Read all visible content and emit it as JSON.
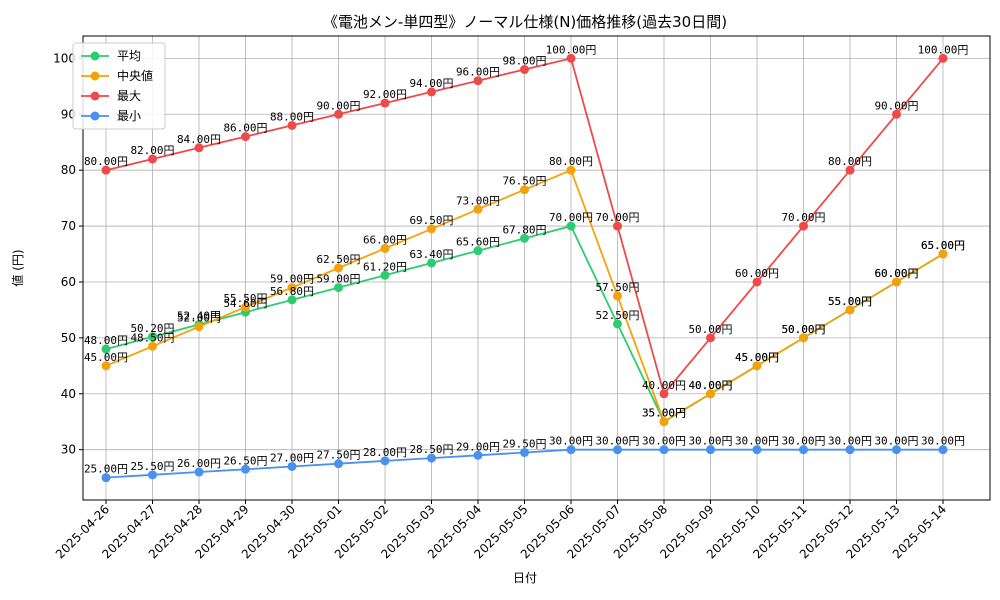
{
  "chart_data": {
    "type": "line",
    "title": "《電池メン-単四型》ノーマル仕様(N)価格推移(過去30日間)",
    "xlabel": "日付",
    "ylabel": "値 (円)",
    "ylim": [
      21,
      104
    ],
    "yticks": [
      30,
      40,
      50,
      60,
      70,
      80,
      90,
      100
    ],
    "grid": true,
    "legend_position": "top-left",
    "value_suffix": "円",
    "categories": [
      "2025-04-26",
      "2025-04-27",
      "2025-04-28",
      "2025-04-29",
      "2025-04-30",
      "2025-05-01",
      "2025-05-02",
      "2025-05-03",
      "2025-05-04",
      "2025-05-05",
      "2025-05-06",
      "2025-05-07",
      "2025-05-08",
      "2025-05-09",
      "2025-05-10",
      "2025-05-11",
      "2025-05-12",
      "2025-05-13",
      "2025-05-14"
    ],
    "series": [
      {
        "name": "平均",
        "color": "#2ecc71",
        "values": [
          48.0,
          50.2,
          52.4,
          54.6,
          56.8,
          59.0,
          61.2,
          63.4,
          65.6,
          67.8,
          70.0,
          52.5,
          35.0,
          40.0,
          45.0,
          50.0,
          55.0,
          60.0,
          65.0
        ]
      },
      {
        "name": "中央値",
        "color": "#f5a20a",
        "values": [
          45.0,
          48.5,
          52.0,
          55.5,
          59.0,
          62.5,
          66.0,
          69.5,
          73.0,
          76.5,
          80.0,
          57.5,
          35.0,
          40.0,
          45.0,
          50.0,
          55.0,
          60.0,
          65.0
        ]
      },
      {
        "name": "最大",
        "color": "#ef4a4a",
        "values": [
          80.0,
          82.0,
          84.0,
          86.0,
          88.0,
          90.0,
          92.0,
          94.0,
          96.0,
          98.0,
          100.0,
          70.0,
          40.0,
          50.0,
          60.0,
          70.0,
          80.0,
          90.0,
          100.0
        ]
      },
      {
        "name": "最小",
        "color": "#4a90f0",
        "values": [
          25.0,
          25.5,
          26.0,
          26.5,
          27.0,
          27.5,
          28.0,
          28.5,
          29.0,
          29.5,
          30.0,
          30.0,
          30.0,
          30.0,
          30.0,
          30.0,
          30.0,
          30.0,
          30.0
        ]
      }
    ]
  }
}
